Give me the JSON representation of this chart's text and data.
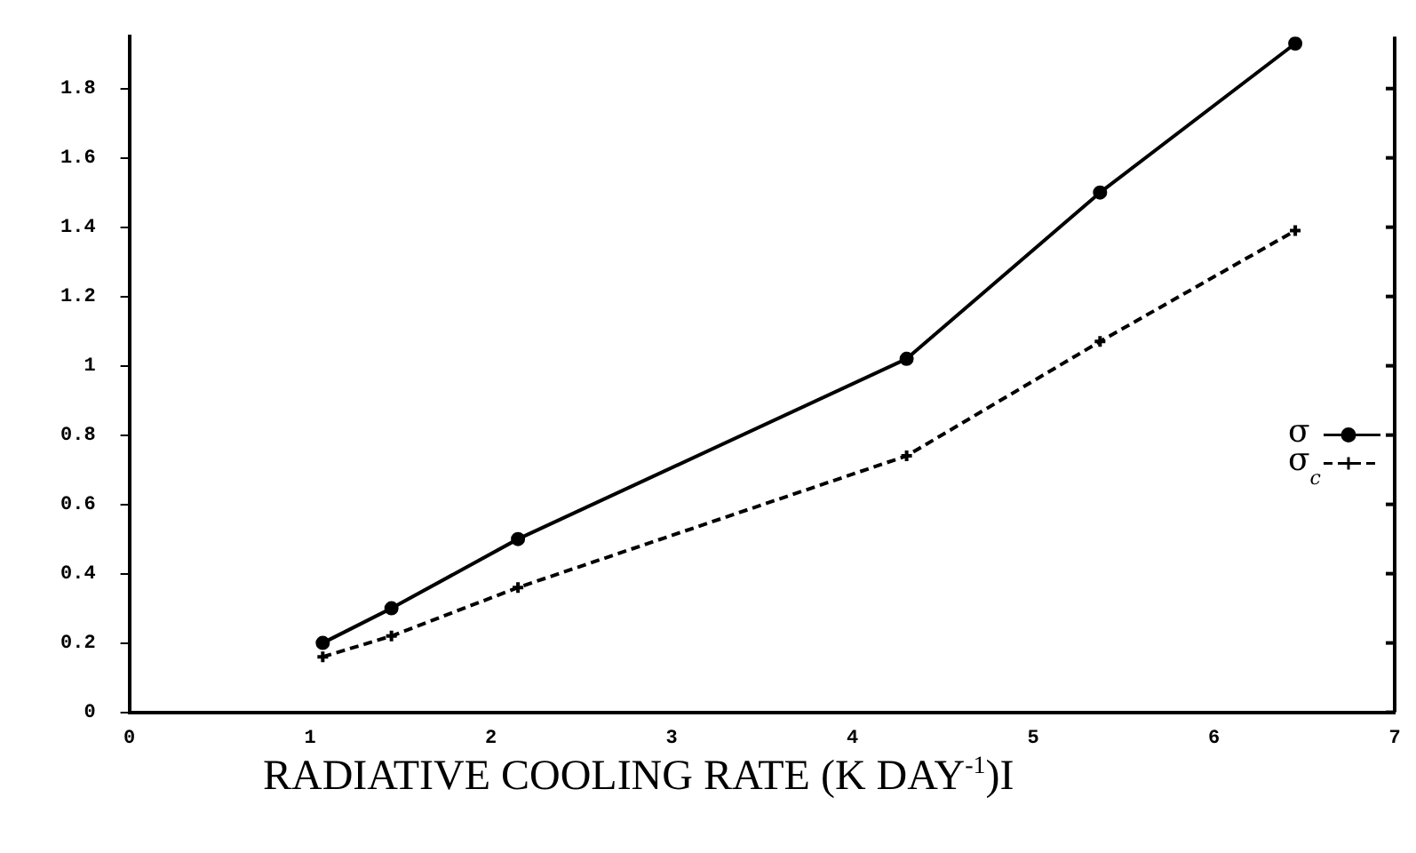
{
  "chart_data": {
    "type": "line",
    "xlabel": "RADIATIVE COOLING RATE (K DAY$^{-1}$)I",
    "xlim": [
      0,
      7
    ],
    "xticks": [
      0,
      1,
      2,
      3,
      4,
      5,
      6,
      7
    ],
    "ylim": [
      0,
      1.95
    ],
    "yticks": [
      0,
      0.2,
      0.4,
      0.6,
      0.8,
      1,
      1.2,
      1.4,
      1.6,
      1.8
    ],
    "grid": false,
    "legend": "right",
    "series": [
      {
        "name": "σ",
        "color": "#000000",
        "marker": "circle",
        "line_style": "solid",
        "x": [
          1.07,
          1.45,
          2.15,
          4.3,
          5.37,
          6.45
        ],
        "values": [
          0.2,
          0.3,
          0.5,
          1.02,
          1.5,
          1.93
        ]
      },
      {
        "name": "σ$_{c}$",
        "color": "#000000",
        "marker": "cross",
        "line_style": "dashed",
        "x": [
          1.07,
          1.45,
          2.15,
          4.3,
          5.37,
          6.45
        ],
        "values": [
          0.16,
          0.22,
          0.36,
          0.74,
          1.07,
          1.39
        ]
      }
    ]
  }
}
